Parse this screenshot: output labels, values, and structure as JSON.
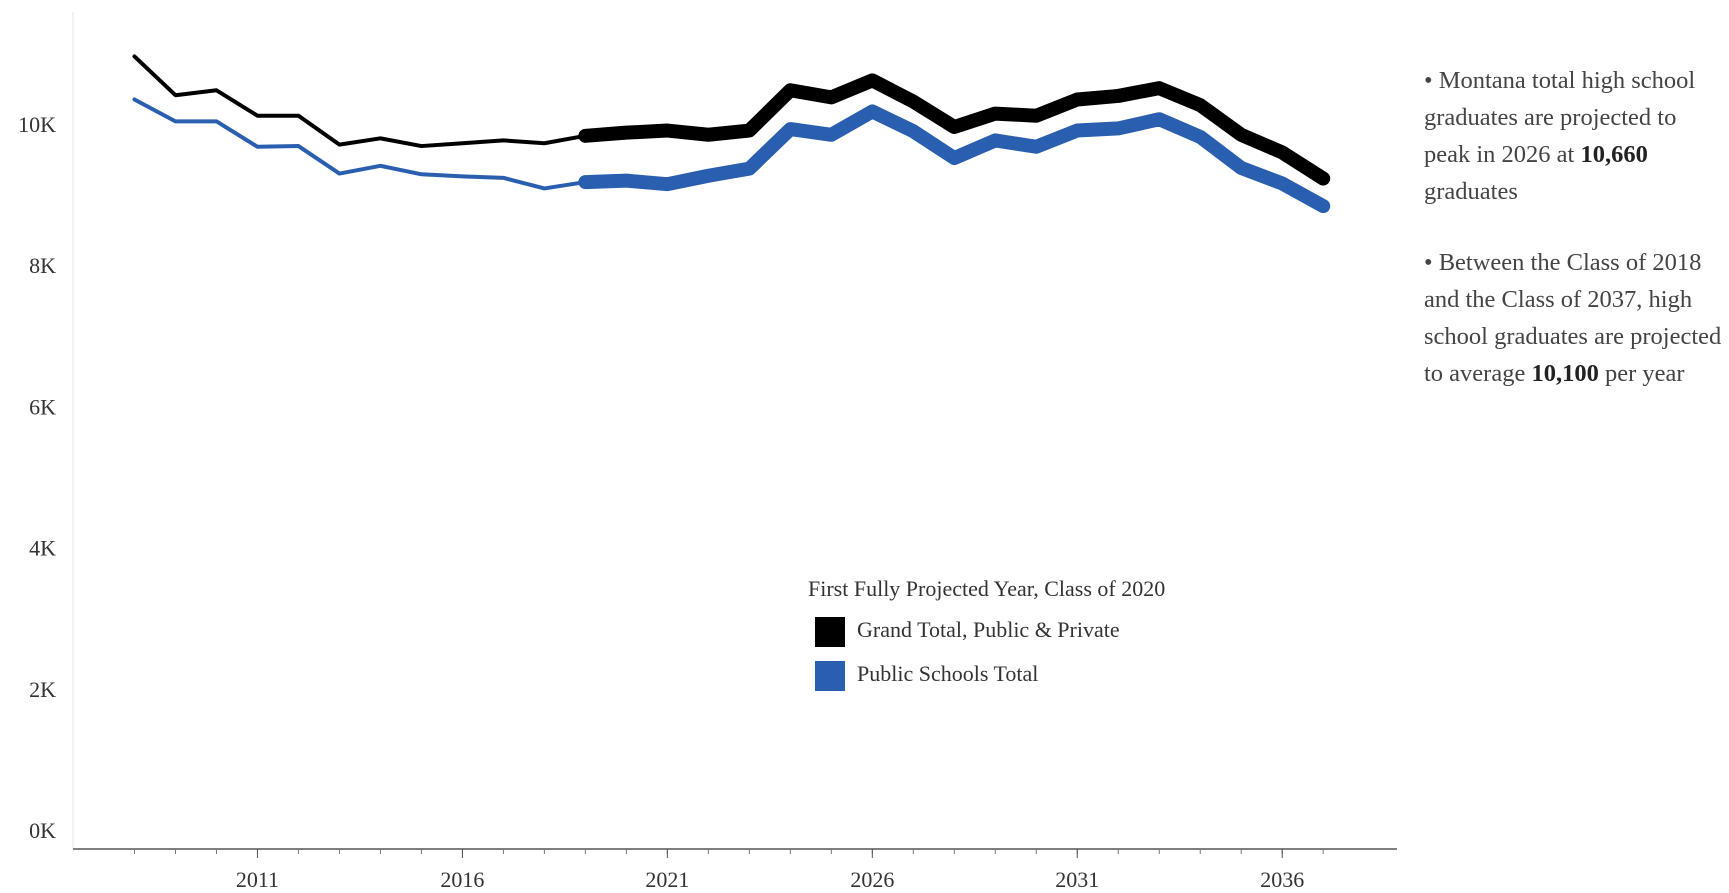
{
  "chart_data": {
    "type": "line",
    "x": [
      2008,
      2009,
      2010,
      2011,
      2012,
      2013,
      2014,
      2015,
      2016,
      2017,
      2018,
      2019,
      2020,
      2021,
      2022,
      2023,
      2024,
      2025,
      2026,
      2027,
      2028,
      2029,
      2030,
      2031,
      2032,
      2033,
      2034,
      2035,
      2036,
      2037
    ],
    "series": [
      {
        "name": "Grand Total, Public & Private",
        "color": "#000000",
        "values": [
          11000,
          10450,
          10520,
          10160,
          10160,
          9750,
          9840,
          9730,
          9770,
          9810,
          9770,
          9875,
          9920,
          9950,
          9890,
          9950,
          10520,
          10420,
          10660,
          10360,
          10000,
          10190,
          10160,
          10390,
          10440,
          10550,
          10310,
          9890,
          9640,
          9270
        ]
      },
      {
        "name": "Public Schools Total",
        "color": "#2a5fb0",
        "values": [
          10390,
          10080,
          10080,
          9720,
          9730,
          9340,
          9450,
          9330,
          9300,
          9280,
          9130,
          9220,
          9240,
          9190,
          9310,
          9410,
          9970,
          9890,
          10220,
          9940,
          9560,
          9810,
          9720,
          9950,
          9980,
          10110,
          9860,
          9420,
          9200,
          8880
        ]
      }
    ],
    "legend_title": "First Fully Projected Year, Class of 2020",
    "projected_from": 2020,
    "xlim": [
      2006.5,
      2038.8
    ],
    "xticks": [
      2011,
      2016,
      2021,
      2026,
      2031,
      2036
    ],
    "ylim": [
      0,
      11000
    ],
    "yticks": [
      {
        "value": 0,
        "label": "0K"
      },
      {
        "value": 2000,
        "label": "2K"
      },
      {
        "value": 4000,
        "label": "4K"
      },
      {
        "value": 6000,
        "label": "6K"
      },
      {
        "value": 8000,
        "label": "8K"
      },
      {
        "value": 10000,
        "label": "10K"
      }
    ],
    "annotations": [
      {
        "parts": [
          "• Montana total high school graduates are projected to peak in 2026 at ",
          "10,660",
          " graduates"
        ]
      },
      {
        "parts": [
          "• Between the Class of 2018 and the Class of 2037, high school graduates are projected to average ",
          "10,100",
          " per year"
        ]
      }
    ]
  }
}
